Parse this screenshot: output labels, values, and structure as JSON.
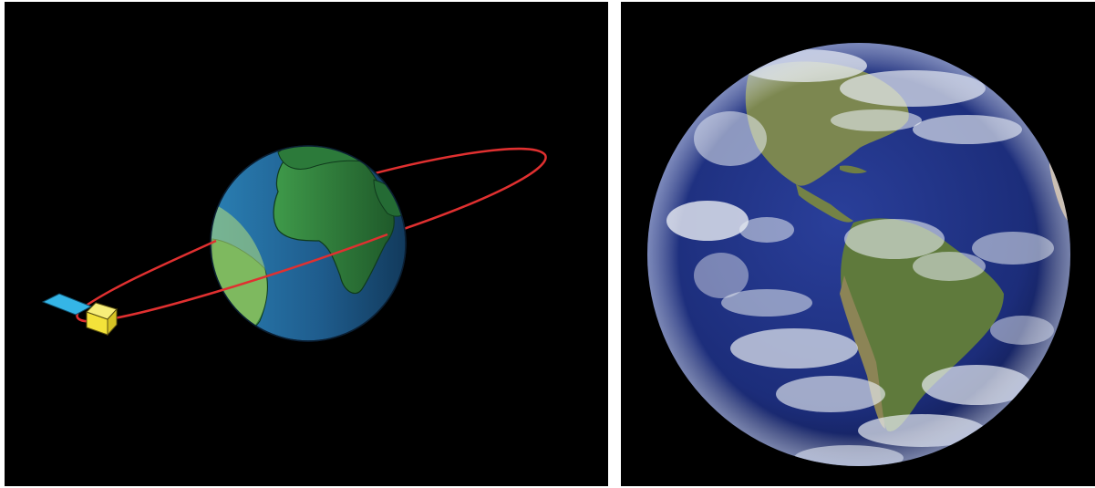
{
  "left_panel": {
    "orbit_color": "#e03030",
    "earth_ocean_color": "#1f5d8e",
    "earth_land_color": "#2f7d3a",
    "satellite_body_color": "#f3e23a",
    "satellite_panel_color": "#35b5e6",
    "sunlit_region_color": "#b7e07a"
  },
  "right_panel": {
    "caption": "",
    "ocean_color": "#1c2d7a",
    "land_color": "#7a8a4a",
    "cloud_color": "#e8ecf2"
  }
}
